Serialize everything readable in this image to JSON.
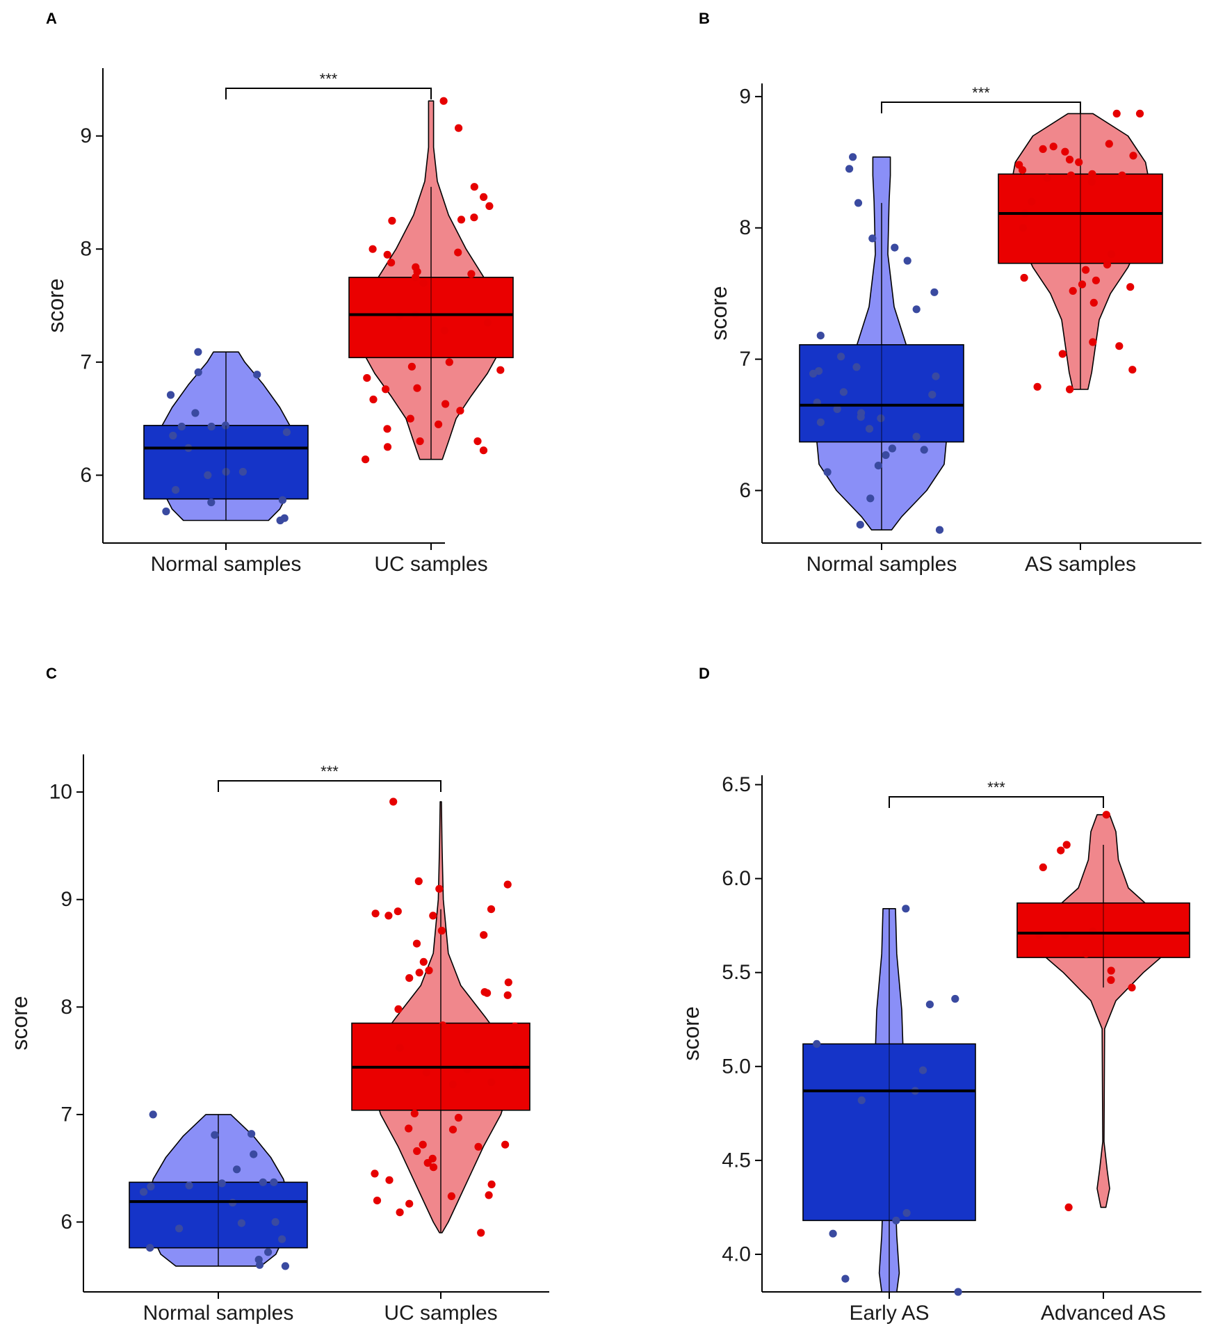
{
  "figure": {
    "colors": {
      "low_violin": "#8a8ff7",
      "low_box": "#1534c8",
      "low_points": "#3a4aa0",
      "high_violin": "#f0878c",
      "high_box": "#ea0000",
      "high_points": "#e60000",
      "outline": "#000000"
    }
  },
  "chart_data": [
    {
      "panel": "A",
      "type": "violin-box",
      "ylabel": "score",
      "xlabel": "",
      "ylim": [
        5.4,
        9.6
      ],
      "yticks": [
        6,
        7,
        8,
        9
      ],
      "significance": "***",
      "groups": [
        {
          "name": "Normal samples",
          "tone": "low",
          "min": 5.6,
          "q1": 5.79,
          "median": 6.24,
          "q3": 6.44,
          "max": 7.09,
          "whisker_low": 5.6,
          "whisker_high": 7.09,
          "violin": [
            [
              5.6,
              0.34
            ],
            [
              5.7,
              0.43
            ],
            [
              5.85,
              0.5
            ],
            [
              6.0,
              0.52
            ],
            [
              6.2,
              0.56
            ],
            [
              6.4,
              0.53
            ],
            [
              6.6,
              0.43
            ],
            [
              6.8,
              0.3
            ],
            [
              7.0,
              0.15
            ],
            [
              7.09,
              0.1
            ]
          ],
          "points": [
            5.6,
            5.62,
            5.68,
            5.76,
            5.78,
            5.87,
            6.0,
            6.03,
            6.03,
            6.24,
            6.35,
            6.38,
            6.43,
            6.43,
            6.44,
            6.55,
            6.71,
            6.89,
            6.91,
            7.09
          ]
        },
        {
          "name": "UC samples",
          "tone": "high",
          "min": 6.14,
          "q1": 7.04,
          "median": 7.42,
          "q3": 7.75,
          "max": 9.31,
          "whisker_low": 6.14,
          "whisker_high": 8.55,
          "violin": [
            [
              6.14,
              0.09
            ],
            [
              6.3,
              0.14
            ],
            [
              6.5,
              0.2
            ],
            [
              6.7,
              0.32
            ],
            [
              6.9,
              0.45
            ],
            [
              7.1,
              0.55
            ],
            [
              7.4,
              0.58
            ],
            [
              7.7,
              0.45
            ],
            [
              8.0,
              0.28
            ],
            [
              8.3,
              0.14
            ],
            [
              8.6,
              0.05
            ],
            [
              8.9,
              0.02
            ],
            [
              9.31,
              0.02
            ]
          ],
          "points": [
            6.14,
            6.22,
            6.25,
            6.3,
            6.3,
            6.41,
            6.45,
            6.5,
            6.57,
            6.63,
            6.67,
            6.76,
            6.77,
            6.86,
            6.93,
            6.96,
            7.0,
            7.28,
            7.35,
            7.41,
            7.42,
            7.7,
            7.75,
            7.78,
            7.8,
            7.84,
            7.88,
            7.95,
            7.97,
            8.0,
            8.25,
            8.26,
            8.28,
            8.38,
            8.46,
            8.55,
            9.07,
            9.31
          ]
        }
      ]
    },
    {
      "panel": "B",
      "type": "violin-box",
      "ylabel": "score",
      "xlabel": "",
      "ylim": [
        5.6,
        9.1
      ],
      "yticks": [
        6,
        7,
        8,
        9
      ],
      "significance": "***",
      "groups": [
        {
          "name": "Normal samples",
          "tone": "low",
          "min": 5.7,
          "q1": 6.37,
          "median": 6.65,
          "q3": 7.11,
          "max": 8.54,
          "whisker_low": 5.7,
          "whisker_high": 8.19,
          "violin": [
            [
              5.7,
              0.08
            ],
            [
              5.8,
              0.16
            ],
            [
              6.0,
              0.36
            ],
            [
              6.2,
              0.5
            ],
            [
              6.5,
              0.53
            ],
            [
              6.7,
              0.45
            ],
            [
              6.9,
              0.32
            ],
            [
              7.1,
              0.2
            ],
            [
              7.4,
              0.1
            ],
            [
              7.8,
              0.05
            ],
            [
              8.2,
              0.06
            ],
            [
              8.4,
              0.07
            ],
            [
              8.54,
              0.07
            ]
          ],
          "points": [
            5.7,
            5.74,
            5.94,
            6.14,
            6.19,
            6.27,
            6.31,
            6.32,
            6.41,
            6.47,
            6.52,
            6.55,
            6.56,
            6.59,
            6.62,
            6.67,
            6.73,
            6.75,
            6.87,
            6.89,
            6.91,
            6.94,
            7.02,
            7.18,
            7.38,
            7.51,
            7.75,
            7.85,
            7.92,
            8.19,
            8.45,
            8.54
          ]
        },
        {
          "name": "AS samples",
          "tone": "high",
          "min": 6.77,
          "q1": 7.73,
          "median": 8.11,
          "q3": 8.41,
          "max": 8.87,
          "whisker_low": 6.77,
          "whisker_high": 8.87,
          "violin": [
            [
              6.77,
              0.06
            ],
            [
              6.9,
              0.09
            ],
            [
              7.1,
              0.12
            ],
            [
              7.3,
              0.15
            ],
            [
              7.5,
              0.24
            ],
            [
              7.7,
              0.38
            ],
            [
              7.9,
              0.48
            ],
            [
              8.1,
              0.54
            ],
            [
              8.3,
              0.56
            ],
            [
              8.5,
              0.52
            ],
            [
              8.7,
              0.38
            ],
            [
              8.87,
              0.1
            ]
          ],
          "points": [
            6.77,
            6.79,
            6.92,
            7.04,
            7.1,
            7.13,
            7.43,
            7.52,
            7.55,
            7.57,
            7.6,
            7.62,
            7.68,
            7.72,
            7.8,
            8.0,
            8.11,
            8.2,
            8.35,
            8.38,
            8.4,
            8.4,
            8.41,
            8.44,
            8.48,
            8.5,
            8.52,
            8.55,
            8.58,
            8.6,
            8.62,
            8.64,
            8.87,
            8.87
          ]
        }
      ]
    },
    {
      "panel": "C",
      "type": "violin-box",
      "ylabel": "score",
      "xlabel": "",
      "ylim": [
        5.35,
        10.35
      ],
      "yticks": [
        6,
        7,
        8,
        9,
        10
      ],
      "significance": "***",
      "groups": [
        {
          "name": "Normal samples",
          "tone": "low",
          "min": 5.59,
          "q1": 5.76,
          "median": 6.19,
          "q3": 6.37,
          "max": 7.0,
          "whisker_low": 5.59,
          "whisker_high": 7.0,
          "violin": [
            [
              5.59,
              0.34
            ],
            [
              5.7,
              0.46
            ],
            [
              5.85,
              0.52
            ],
            [
              6.0,
              0.54
            ],
            [
              6.2,
              0.57
            ],
            [
              6.4,
              0.52
            ],
            [
              6.6,
              0.42
            ],
            [
              6.8,
              0.28
            ],
            [
              7.0,
              0.1
            ]
          ],
          "points": [
            5.59,
            5.6,
            5.65,
            5.72,
            5.76,
            5.84,
            5.94,
            5.99,
            6.0,
            6.18,
            6.28,
            6.33,
            6.34,
            6.36,
            6.37,
            6.37,
            6.49,
            6.63,
            6.81,
            6.82,
            7.0
          ]
        },
        {
          "name": "UC samples",
          "tone": "high",
          "min": 5.9,
          "q1": 7.04,
          "median": 7.44,
          "q3": 7.85,
          "max": 9.91,
          "whisker_low": 5.9,
          "whisker_high": 8.91,
          "violin": [
            [
              5.9,
              0.01
            ],
            [
              6.0,
              0.06
            ],
            [
              6.2,
              0.14
            ],
            [
              6.4,
              0.22
            ],
            [
              6.7,
              0.34
            ],
            [
              7.0,
              0.48
            ],
            [
              7.3,
              0.56
            ],
            [
              7.6,
              0.55
            ],
            [
              7.9,
              0.36
            ],
            [
              8.2,
              0.16
            ],
            [
              8.5,
              0.06
            ],
            [
              9.0,
              0.02
            ],
            [
              9.5,
              0.01
            ],
            [
              9.91,
              0.005
            ]
          ],
          "points": [
            5.9,
            6.09,
            6.17,
            6.2,
            6.24,
            6.25,
            6.35,
            6.39,
            6.45,
            6.51,
            6.55,
            6.59,
            6.66,
            6.7,
            6.72,
            6.72,
            6.86,
            6.87,
            6.97,
            7.01,
            7.28,
            7.3,
            7.39,
            7.42,
            7.44,
            7.62,
            7.82,
            7.83,
            7.98,
            8.11,
            8.13,
            8.14,
            8.23,
            8.27,
            8.32,
            8.34,
            8.42,
            8.59,
            8.67,
            8.71,
            8.85,
            8.85,
            8.87,
            8.89,
            8.91,
            9.1,
            9.14,
            9.17,
            9.91
          ]
        }
      ]
    },
    {
      "panel": "D",
      "type": "violin-box",
      "ylabel": "score",
      "xlabel": "",
      "ylim": [
        3.8,
        6.55
      ],
      "yticks": [
        "4.0",
        "4.5",
        "5.0",
        "5.5",
        "6.0",
        "6.5"
      ],
      "significance": "***",
      "groups": [
        {
          "name": "Early AS",
          "tone": "low",
          "min": 3.8,
          "q1": 4.18,
          "median": 4.87,
          "q3": 5.12,
          "max": 5.84,
          "whisker_low": 3.8,
          "whisker_high": 5.84,
          "violin": [
            [
              3.8,
              0.06
            ],
            [
              3.9,
              0.08
            ],
            [
              4.1,
              0.06
            ],
            [
              4.3,
              0.05
            ],
            [
              4.6,
              0.06
            ],
            [
              4.9,
              0.09
            ],
            [
              5.1,
              0.11
            ],
            [
              5.3,
              0.1
            ],
            [
              5.6,
              0.06
            ],
            [
              5.84,
              0.05
            ]
          ],
          "points": [
            3.8,
            3.87,
            4.11,
            4.18,
            4.22,
            4.82,
            4.87,
            4.98,
            5.12,
            5.33,
            5.36,
            5.84
          ]
        },
        {
          "name": "Advanced AS",
          "tone": "high",
          "min": 4.25,
          "q1": 5.58,
          "median": 5.71,
          "q3": 5.87,
          "max": 6.34,
          "whisker_low": 5.42,
          "whisker_high": 6.18,
          "violin": [
            [
              4.25,
              0.02
            ],
            [
              4.35,
              0.05
            ],
            [
              4.45,
              0.03
            ],
            [
              4.6,
              0.005
            ],
            [
              5.2,
              0.01
            ],
            [
              5.35,
              0.1
            ],
            [
              5.5,
              0.32
            ],
            [
              5.65,
              0.58
            ],
            [
              5.8,
              0.45
            ],
            [
              5.95,
              0.2
            ],
            [
              6.1,
              0.12
            ],
            [
              6.25,
              0.1
            ],
            [
              6.34,
              0.05
            ]
          ],
          "points": [
            4.25,
            5.42,
            5.46,
            5.51,
            5.6,
            5.7,
            5.7,
            5.72,
            6.06,
            6.15,
            6.18,
            6.34
          ]
        }
      ]
    }
  ]
}
